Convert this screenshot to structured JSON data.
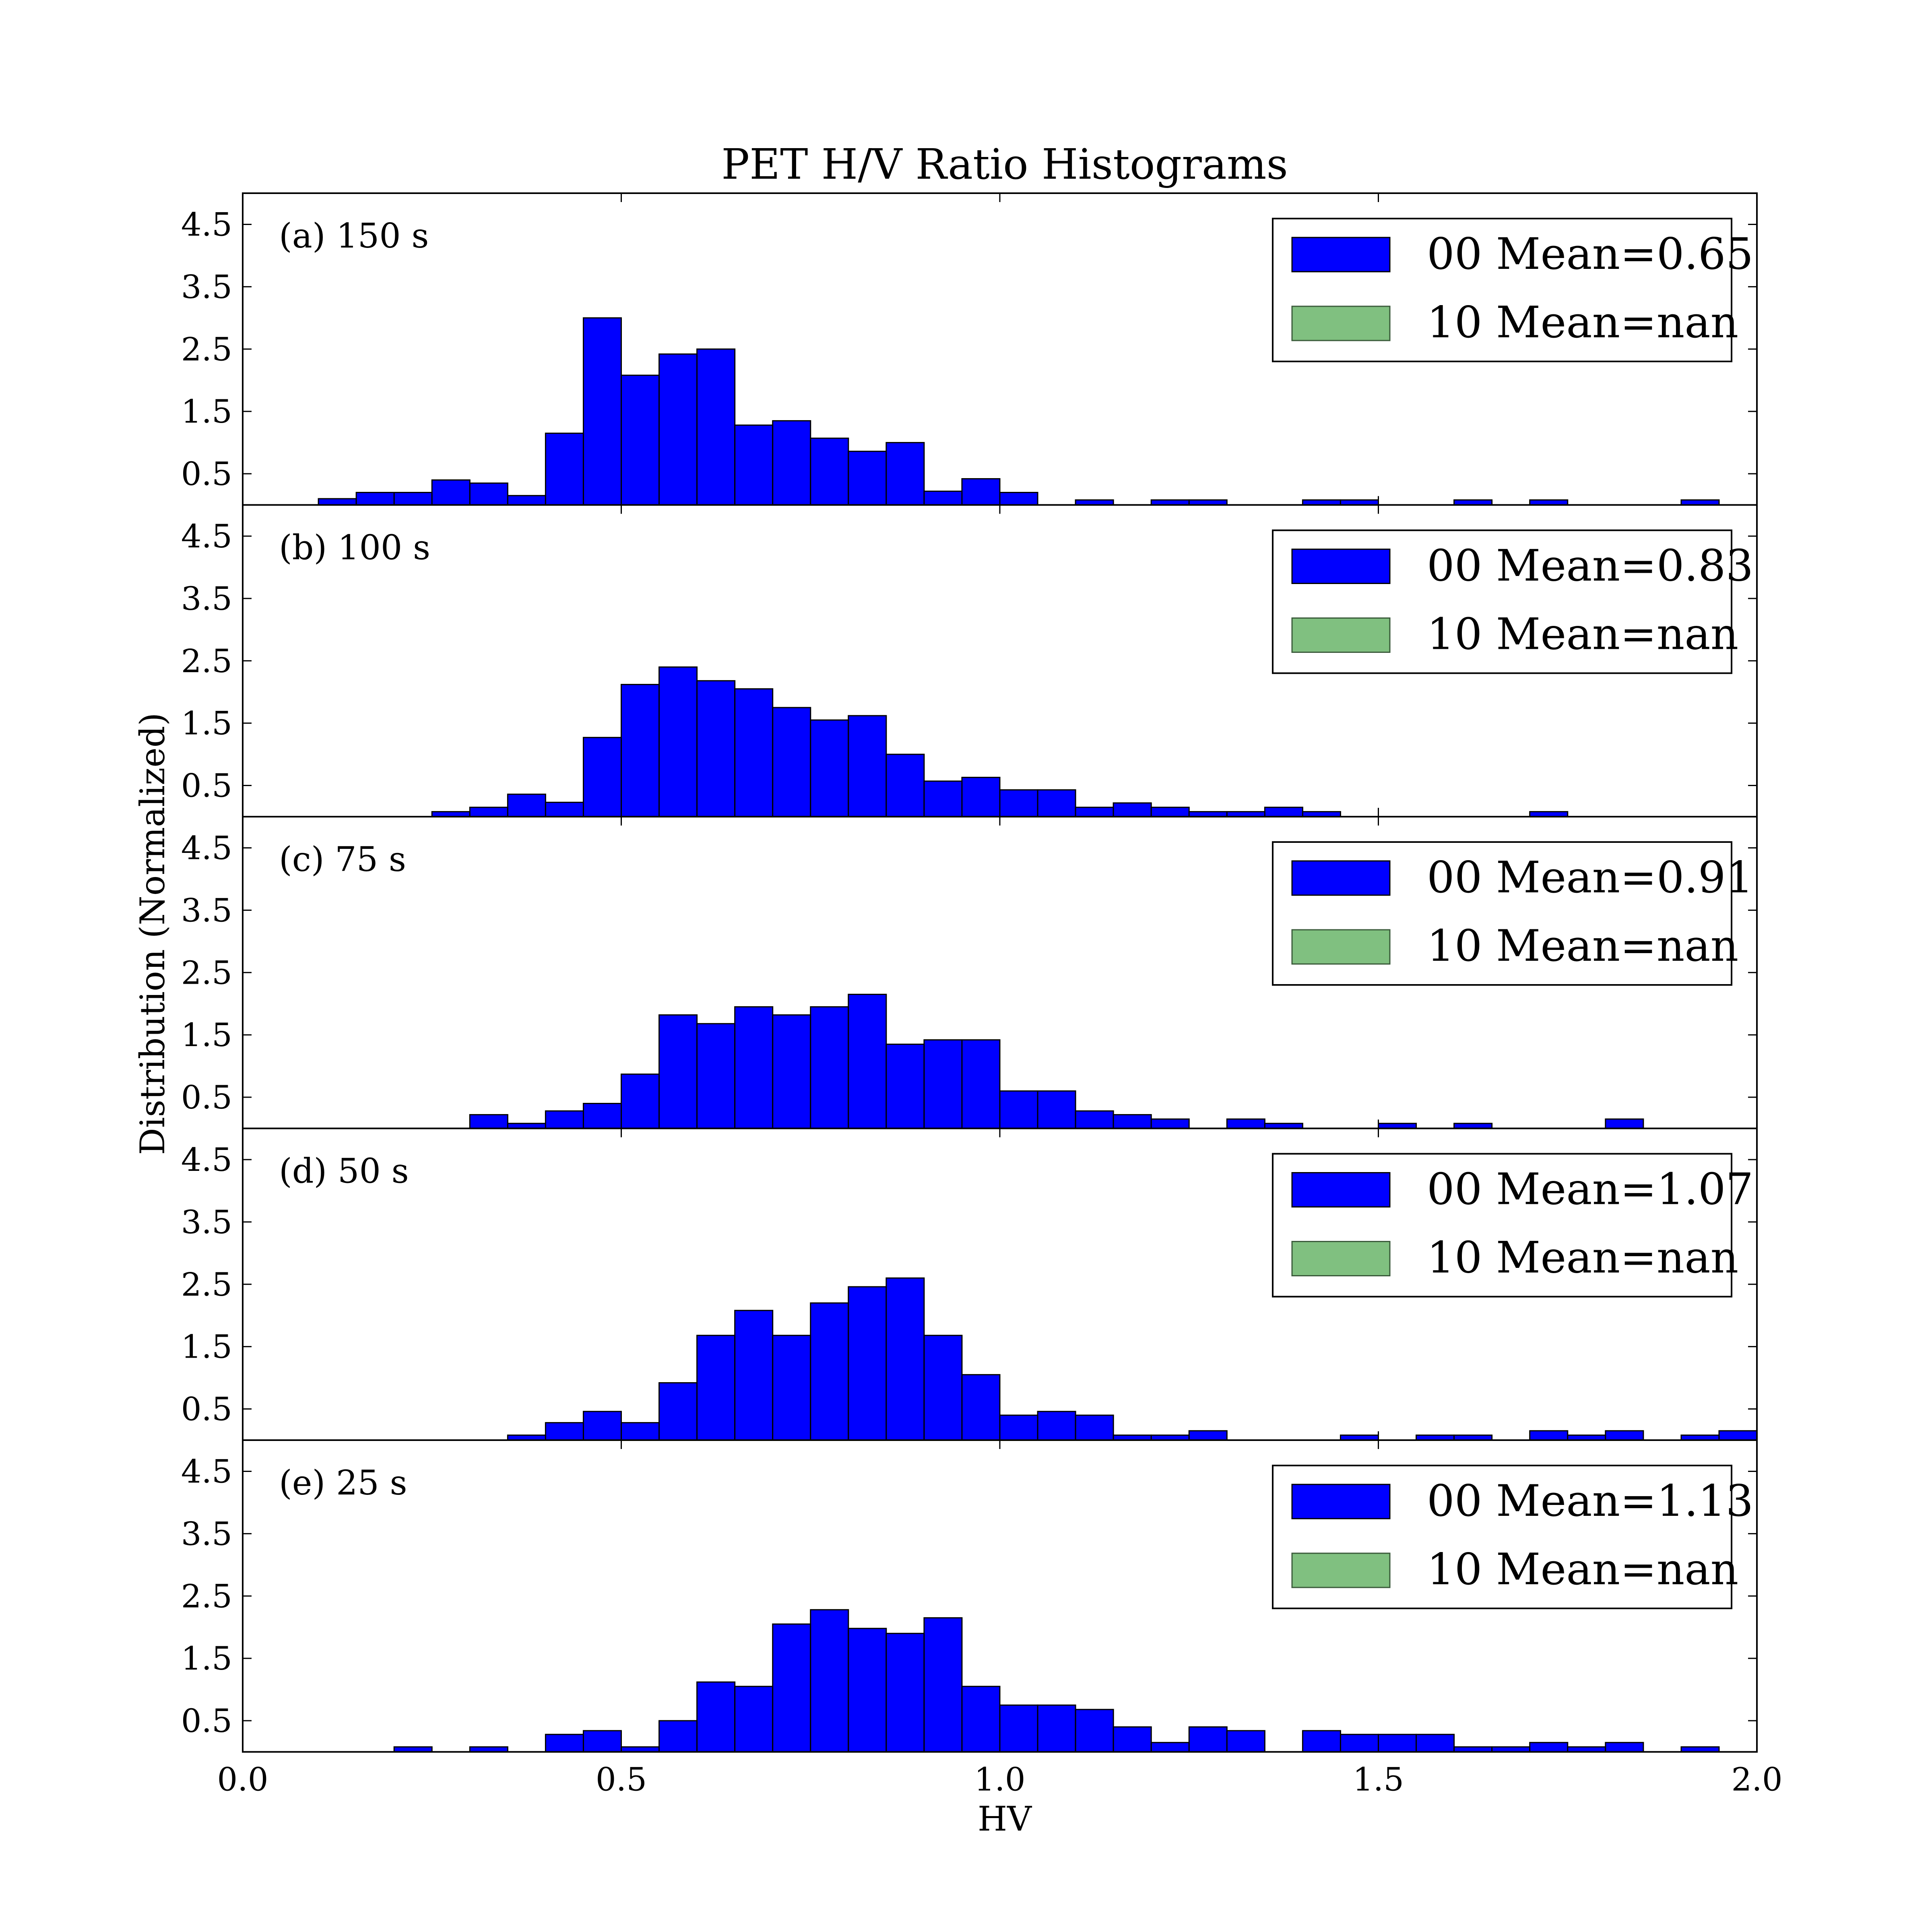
{
  "chart_data": {
    "type": "bar",
    "title": "PET H/V Ratio Histograms",
    "xlabel": "HV",
    "ylabel": "Distribution (Normalized)",
    "xlim": [
      0.0,
      2.0
    ],
    "ylim": [
      0,
      5
    ],
    "x_ticks": [
      "0.0",
      "0.5",
      "1.0",
      "1.5",
      "2.0"
    ],
    "y_ticks": [
      "0.5",
      "1.5",
      "2.5",
      "3.5",
      "4.5"
    ],
    "y_tick_values": [
      0.5,
      1.5,
      2.5,
      3.5,
      4.5
    ],
    "bin_width": 0.05,
    "bin_start": 0.0,
    "grid": false,
    "legend_placement": "top-right",
    "series_colors": {
      "00": "#0000ff",
      "10": "#80c080"
    },
    "panels": [
      {
        "label": "(a) 150 s",
        "legend": [
          "00 Mean=0.65",
          "10 Mean=nan"
        ],
        "values": [
          0,
          0,
          0.1,
          0.2,
          0.2,
          0.4,
          0.35,
          0.15,
          1.15,
          3.0,
          2.08,
          2.42,
          2.5,
          1.28,
          1.35,
          1.07,
          0.86,
          1.0,
          0.22,
          0.42,
          0.2,
          0,
          0.08,
          0,
          0.08,
          0.08,
          0,
          0,
          0.08,
          0.08,
          0,
          0,
          0.08,
          0,
          0.08,
          0,
          0,
          0,
          0.08,
          0
        ]
      },
      {
        "label": "(b) 100 s",
        "legend": [
          "00 Mean=0.83",
          "10 Mean=nan"
        ],
        "values": [
          0,
          0,
          0,
          0,
          0,
          0.08,
          0.15,
          0.36,
          0.23,
          1.27,
          2.12,
          2.4,
          2.18,
          2.05,
          1.75,
          1.55,
          1.62,
          1.0,
          0.57,
          0.63,
          0.43,
          0.43,
          0.15,
          0.22,
          0.15,
          0.08,
          0.08,
          0.15,
          0.08,
          0,
          0,
          0,
          0,
          0,
          0.08,
          0,
          0,
          0,
          0,
          0
        ]
      },
      {
        "label": "(c) 75 s",
        "legend": [
          "00 Mean=0.91",
          "10 Mean=nan"
        ],
        "values": [
          0,
          0,
          0,
          0,
          0,
          0,
          0.22,
          0.08,
          0.28,
          0.4,
          0.87,
          1.82,
          1.68,
          1.95,
          1.82,
          1.95,
          2.15,
          1.35,
          1.42,
          1.42,
          0.6,
          0.6,
          0.28,
          0.22,
          0.15,
          0,
          0.15,
          0.08,
          0,
          0,
          0.08,
          0,
          0.08,
          0,
          0,
          0,
          0.15,
          0,
          0,
          0
        ]
      },
      {
        "label": "(d) 50 s",
        "legend": [
          "00 Mean=1.07",
          "10 Mean=nan"
        ],
        "values": [
          0,
          0,
          0,
          0,
          0,
          0,
          0,
          0.08,
          0.28,
          0.46,
          0.28,
          0.92,
          1.68,
          2.08,
          1.68,
          2.2,
          2.46,
          2.6,
          1.68,
          1.05,
          0.4,
          0.46,
          0.4,
          0.08,
          0.08,
          0.15,
          0,
          0,
          0,
          0.08,
          0,
          0.08,
          0.08,
          0,
          0.15,
          0.08,
          0.15,
          0,
          0.08,
          0.15
        ]
      },
      {
        "label": "(e) 25 s",
        "legend": [
          "00 Mean=1.13",
          "10 Mean=nan"
        ],
        "values": [
          0,
          0,
          0,
          0,
          0.08,
          0,
          0.08,
          0,
          0.28,
          0.34,
          0.08,
          0.5,
          1.12,
          1.05,
          2.05,
          2.28,
          1.98,
          1.9,
          2.15,
          1.05,
          0.75,
          0.75,
          0.68,
          0.4,
          0.15,
          0.4,
          0.34,
          0,
          0.34,
          0.28,
          0.28,
          0.28,
          0.08,
          0.08,
          0.15,
          0.08,
          0.15,
          0,
          0.08,
          0
        ]
      }
    ]
  }
}
